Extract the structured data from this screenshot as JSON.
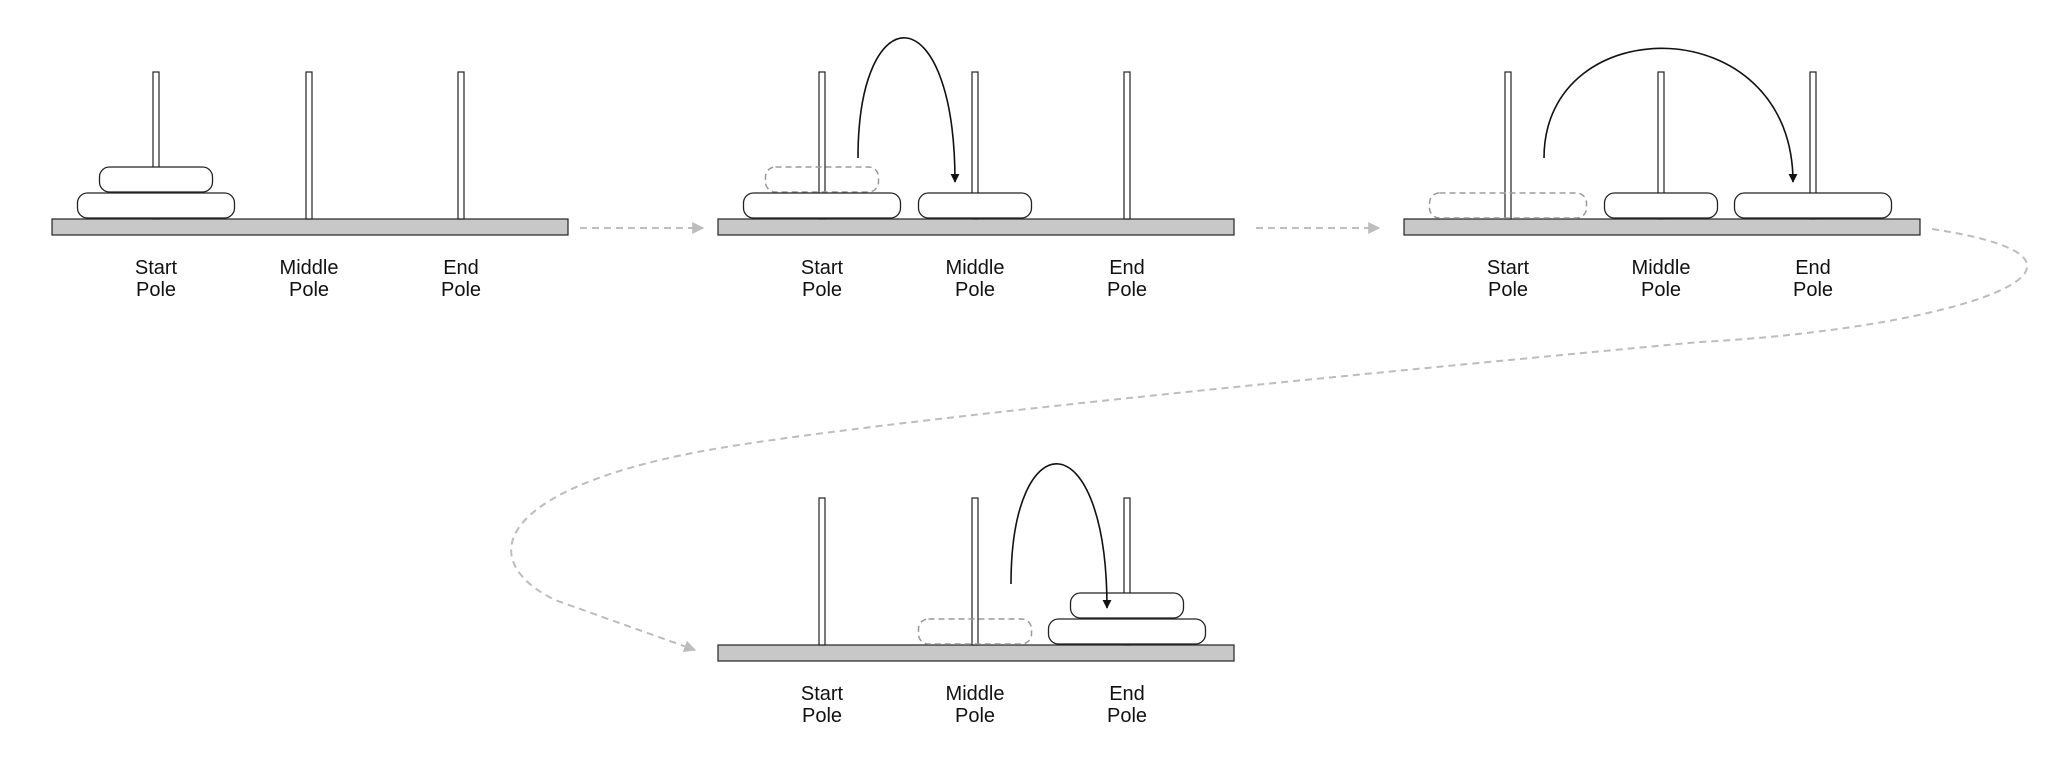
{
  "pole_labels": [
    {
      "line1": "Start",
      "line2": "Pole"
    },
    {
      "line1": "Middle",
      "line2": "Pole"
    },
    {
      "line1": "End",
      "line2": "Pole"
    }
  ],
  "steps": [
    {
      "id": "step-1",
      "disks": [
        {
          "pole": 0,
          "level": 0,
          "size": "large"
        },
        {
          "pole": 0,
          "level": 1,
          "size": "small"
        }
      ],
      "ghost": null,
      "move": null
    },
    {
      "id": "step-2",
      "disks": [
        {
          "pole": 0,
          "level": 0,
          "size": "large"
        },
        {
          "pole": 1,
          "level": 0,
          "size": "small"
        }
      ],
      "ghost": {
        "pole": 0,
        "level": 1,
        "size": "small"
      },
      "move": {
        "from": 0,
        "to": 1
      }
    },
    {
      "id": "step-3",
      "disks": [
        {
          "pole": 1,
          "level": 0,
          "size": "small"
        },
        {
          "pole": 2,
          "level": 0,
          "size": "large"
        }
      ],
      "ghost": {
        "pole": 0,
        "level": 0,
        "size": "large"
      },
      "move": {
        "from": 0,
        "to": 2
      }
    },
    {
      "id": "step-4",
      "disks": [
        {
          "pole": 2,
          "level": 0,
          "size": "large"
        },
        {
          "pole": 2,
          "level": 1,
          "size": "small"
        }
      ],
      "ghost": {
        "pole": 1,
        "level": 0,
        "size": "small"
      },
      "move": {
        "from": 1,
        "to": 2
      }
    }
  ],
  "colors": {
    "base": "#c8c8c8",
    "outline": "#222222",
    "ghost": "#9a9a9a",
    "flow_arrow": "#bdbdbd",
    "move_arrow": "#111111",
    "disk": "#ffffff"
  }
}
